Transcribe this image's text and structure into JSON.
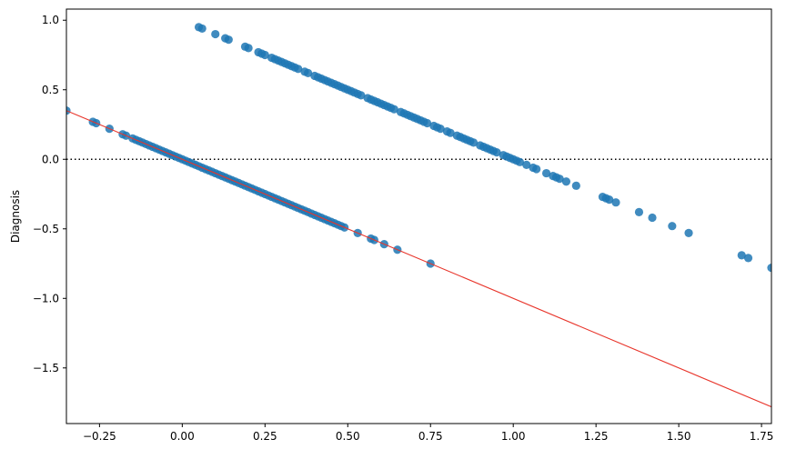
{
  "chart_data": {
    "type": "scatter",
    "title": "",
    "xlabel": "",
    "ylabel": "Diagnosis",
    "xlim": [
      -0.35,
      1.78
    ],
    "ylim": [
      -1.9,
      1.08
    ],
    "grid": false,
    "x_ticks": [
      -0.25,
      0.0,
      0.25,
      0.5,
      0.75,
      1.0,
      1.25,
      1.5,
      1.75
    ],
    "y_ticks": [
      -1.5,
      -1.0,
      -0.5,
      0.0,
      0.5,
      1.0
    ],
    "x_tick_labels": [
      "−0.25",
      "0.00",
      "0.25",
      "0.50",
      "0.75",
      "1.00",
      "1.25",
      "1.50",
      "1.75"
    ],
    "y_tick_labels": [
      "−1.5",
      "−1.0",
      "−0.5",
      "0.0",
      "0.5",
      "1.0"
    ],
    "point_color": "#1f77b4",
    "reference_line": {
      "y": 0.0,
      "style": "dotted",
      "color": "#000000"
    },
    "fit_line": {
      "slope": -1.0,
      "intercept": 0.0,
      "color": "#e8352b"
    },
    "series": [
      {
        "x": [
          -0.35,
          -0.27,
          -0.26,
          -0.22,
          -0.18,
          -0.17,
          -0.15,
          -0.14,
          -0.13,
          -0.12,
          -0.11,
          -0.1,
          -0.09,
          -0.08,
          -0.07,
          -0.06,
          -0.05,
          -0.04,
          -0.03,
          -0.02,
          -0.01,
          0.0,
          0.01,
          0.02,
          0.03,
          0.04,
          0.05,
          0.06,
          0.07,
          0.08,
          0.09,
          0.1,
          0.11,
          0.12,
          0.13,
          0.14,
          0.15,
          0.16,
          0.17,
          0.18,
          0.19,
          0.2,
          0.21,
          0.22,
          0.23,
          0.24,
          0.25,
          0.26,
          0.27,
          0.28,
          0.29,
          0.3,
          0.31,
          0.32,
          0.33,
          0.34,
          0.35,
          0.36,
          0.37,
          0.38,
          0.39,
          0.4,
          0.41,
          0.42,
          0.43,
          0.44,
          0.45,
          0.46,
          0.47,
          0.48,
          0.49,
          0.53,
          0.57,
          0.58,
          0.61,
          0.65,
          0.75
        ],
        "y": [
          0.35,
          0.27,
          0.26,
          0.22,
          0.18,
          0.17,
          0.15,
          0.14,
          0.13,
          0.12,
          0.11,
          0.1,
          0.09,
          0.08,
          0.07,
          0.06,
          0.05,
          0.04,
          0.03,
          0.02,
          0.01,
          0.0,
          -0.01,
          -0.02,
          -0.03,
          -0.04,
          -0.05,
          -0.06,
          -0.07,
          -0.08,
          -0.09,
          -0.1,
          -0.11,
          -0.12,
          -0.13,
          -0.14,
          -0.15,
          -0.16,
          -0.17,
          -0.18,
          -0.19,
          -0.2,
          -0.21,
          -0.22,
          -0.23,
          -0.24,
          -0.25,
          -0.26,
          -0.27,
          -0.28,
          -0.29,
          -0.3,
          -0.31,
          -0.32,
          -0.33,
          -0.34,
          -0.35,
          -0.36,
          -0.37,
          -0.38,
          -0.39,
          -0.4,
          -0.41,
          -0.42,
          -0.43,
          -0.44,
          -0.45,
          -0.46,
          -0.47,
          -0.48,
          -0.49,
          -0.53,
          -0.57,
          -0.58,
          -0.61,
          -0.65,
          -0.75
        ]
      },
      {
        "x": [
          0.05,
          0.06,
          0.1,
          0.13,
          0.14,
          0.19,
          0.2,
          0.23,
          0.24,
          0.25,
          0.27,
          0.28,
          0.29,
          0.3,
          0.31,
          0.32,
          0.33,
          0.34,
          0.35,
          0.37,
          0.38,
          0.4,
          0.41,
          0.42,
          0.43,
          0.44,
          0.45,
          0.46,
          0.47,
          0.48,
          0.49,
          0.5,
          0.51,
          0.52,
          0.53,
          0.54,
          0.56,
          0.57,
          0.58,
          0.59,
          0.6,
          0.61,
          0.62,
          0.63,
          0.64,
          0.66,
          0.67,
          0.68,
          0.69,
          0.7,
          0.71,
          0.72,
          0.73,
          0.74,
          0.76,
          0.77,
          0.78,
          0.8,
          0.81,
          0.83,
          0.84,
          0.85,
          0.86,
          0.87,
          0.88,
          0.9,
          0.91,
          0.92,
          0.93,
          0.94,
          0.95,
          0.97,
          0.98,
          0.99,
          1.0,
          1.01,
          1.02,
          1.04,
          1.06,
          1.07,
          1.1,
          1.12,
          1.13,
          1.14,
          1.16,
          1.19,
          1.27,
          1.28,
          1.29,
          1.31,
          1.38,
          1.42,
          1.48,
          1.53,
          1.69,
          1.71,
          1.78
        ],
        "y": [
          0.95,
          0.94,
          0.9,
          0.87,
          0.86,
          0.81,
          0.8,
          0.77,
          0.76,
          0.75,
          0.73,
          0.72,
          0.71,
          0.7,
          0.69,
          0.68,
          0.67,
          0.66,
          0.65,
          0.63,
          0.62,
          0.6,
          0.59,
          0.58,
          0.57,
          0.56,
          0.55,
          0.54,
          0.53,
          0.52,
          0.51,
          0.5,
          0.49,
          0.48,
          0.47,
          0.46,
          0.44,
          0.43,
          0.42,
          0.41,
          0.4,
          0.39,
          0.38,
          0.37,
          0.36,
          0.34,
          0.33,
          0.32,
          0.31,
          0.3,
          0.29,
          0.28,
          0.27,
          0.26,
          0.24,
          0.23,
          0.22,
          0.2,
          0.19,
          0.17,
          0.16,
          0.15,
          0.14,
          0.13,
          0.12,
          0.1,
          0.09,
          0.08,
          0.07,
          0.06,
          0.05,
          0.03,
          0.02,
          0.01,
          0.0,
          -0.01,
          -0.02,
          -0.04,
          -0.06,
          -0.07,
          -0.1,
          -0.12,
          -0.13,
          -0.14,
          -0.16,
          -0.19,
          -0.27,
          -0.28,
          -0.29,
          -0.31,
          -0.38,
          -0.42,
          -0.48,
          -0.53,
          -0.69,
          -0.71,
          -0.78
        ]
      }
    ]
  }
}
